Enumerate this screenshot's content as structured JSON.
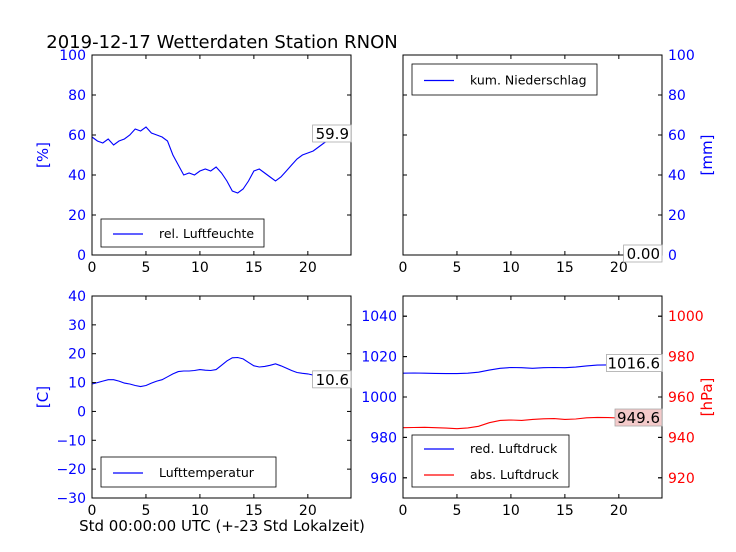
{
  "title": "2019-12-17 Wetterdaten Station RNON",
  "footer": "Std 00:00:00 UTC (+-23 Std Lokalzeit)",
  "chart_data": [
    {
      "id": "humidity",
      "type": "line",
      "ylabel": "[%]",
      "ylabel_color": "#0000ff",
      "tick_color": "#0000ff",
      "xlim": [
        0,
        24
      ],
      "ylim": [
        0,
        100
      ],
      "xticks": [
        0,
        5,
        10,
        15,
        20
      ],
      "yticks": [
        0,
        20,
        40,
        60,
        80,
        100
      ],
      "ytick_side": "left",
      "legend": {
        "position": "lower-left",
        "entries": [
          {
            "name": "rel. Luftfeuchte",
            "color": "#0000ff"
          }
        ]
      },
      "last_value_label": "59.9",
      "series": [
        {
          "name": "rel. Luftfeuchte",
          "color": "#0000ff",
          "x": [
            0,
            0.5,
            1,
            1.5,
            2,
            2.5,
            3,
            3.5,
            4,
            4.5,
            5,
            5.5,
            6,
            6.5,
            7,
            7.5,
            8,
            8.5,
            9,
            9.5,
            10,
            10.5,
            11,
            11.5,
            12,
            12.5,
            13,
            13.5,
            14,
            14.5,
            15,
            15.5,
            16,
            16.5,
            17,
            17.5,
            18,
            18.5,
            19,
            19.5,
            20,
            20.5,
            21,
            21.5,
            22,
            22.5,
            23,
            23.5,
            24
          ],
          "y": [
            59,
            57,
            56,
            58,
            55,
            57,
            58,
            60,
            63,
            62,
            64,
            61,
            60,
            59,
            57,
            50,
            45,
            40,
            41,
            40,
            42,
            43,
            42,
            44,
            41,
            37,
            32,
            31,
            33,
            37,
            42,
            43,
            41,
            39,
            37,
            39,
            42,
            45,
            48,
            50,
            51,
            52,
            54,
            56,
            58,
            60,
            61,
            60,
            60
          ]
        }
      ]
    },
    {
      "id": "precipitation",
      "type": "line",
      "ylabel": "[mm]",
      "ylabel_color": "#0000ff",
      "tick_color": "#0000ff",
      "xlim": [
        0,
        24
      ],
      "ylim": [
        0,
        100
      ],
      "xticks": [
        0,
        5,
        10,
        15,
        20
      ],
      "yticks": [
        0,
        20,
        40,
        60,
        80,
        100
      ],
      "ytick_side": "right",
      "legend": {
        "position": "upper-left",
        "entries": [
          {
            "name": "kum. Niederschlag",
            "color": "#0000ff"
          }
        ]
      },
      "last_value_label": "0.00",
      "series": [
        {
          "name": "kum. Niederschlag",
          "color": "#0000ff",
          "x": [
            0,
            24
          ],
          "y": [
            0,
            0
          ]
        }
      ]
    },
    {
      "id": "temperature",
      "type": "line",
      "ylabel": "[C]",
      "ylabel_color": "#0000ff",
      "tick_color": "#0000ff",
      "xlim": [
        0,
        24
      ],
      "ylim": [
        -30,
        40
      ],
      "xticks": [
        0,
        5,
        10,
        15,
        20
      ],
      "yticks": [
        -30,
        -20,
        -10,
        0,
        10,
        20,
        30,
        40
      ],
      "ytick_side": "left",
      "legend": {
        "position": "lower-left",
        "entries": [
          {
            "name": "Lufttemperatur",
            "color": "#0000ff"
          }
        ]
      },
      "last_value_label": "10.6",
      "series": [
        {
          "name": "Lufttemperatur",
          "color": "#0000ff",
          "x": [
            0,
            0.5,
            1,
            1.5,
            2,
            2.5,
            3,
            3.5,
            4,
            4.5,
            5,
            5.5,
            6,
            6.5,
            7,
            7.5,
            8,
            8.5,
            9,
            9.5,
            10,
            10.5,
            11,
            11.5,
            12,
            12.5,
            13,
            13.5,
            14,
            14.5,
            15,
            15.5,
            16,
            16.5,
            17,
            17.5,
            18,
            18.5,
            19,
            19.5,
            20,
            20.5,
            21,
            21.5,
            22,
            22.5,
            23,
            23.5,
            24
          ],
          "y": [
            9.5,
            10,
            10.5,
            11,
            11,
            10.5,
            9.8,
            9.5,
            9,
            8.6,
            9,
            9.8,
            10.5,
            11,
            12,
            13,
            13.8,
            14,
            14,
            14.2,
            14.5,
            14.3,
            14.2,
            14.5,
            16,
            17.5,
            18.6,
            18.7,
            18.2,
            17,
            15.8,
            15.4,
            15.6,
            16,
            16.5,
            15.8,
            15,
            14.2,
            13.5,
            13.2,
            13,
            12.6,
            12.2,
            11.8,
            11.5,
            11,
            10.8,
            10.6,
            10.6
          ]
        }
      ]
    },
    {
      "id": "pressure",
      "type": "line",
      "ylabel": "[hPa]",
      "ylabel_color": "#ff0000",
      "tick_color": "#0000ff",
      "xlim": [
        0,
        24
      ],
      "ylim": [
        950,
        1050
      ],
      "ylim_right": [
        910,
        1010
      ],
      "xticks": [
        0,
        5,
        10,
        15,
        20
      ],
      "yticks": [
        960,
        980,
        1000,
        1020,
        1040
      ],
      "yticks_right": [
        920,
        940,
        960,
        980,
        1000
      ],
      "right_tick_color": "#ff0000",
      "legend": {
        "position": "lower-left",
        "entries": [
          {
            "name": "red. Luftdruck",
            "color": "#0000ff"
          },
          {
            "name": "abs. Luftdruck",
            "color": "#ff0000"
          }
        ]
      },
      "series": [
        {
          "name": "red. Luftdruck",
          "color": "#0000ff",
          "axis": "left",
          "last_value_label": "1016.6",
          "x": [
            0,
            1,
            2,
            3,
            4,
            5,
            6,
            7,
            8,
            9,
            10,
            11,
            12,
            13,
            14,
            15,
            16,
            17,
            18,
            19,
            20,
            21,
            22,
            23,
            24
          ],
          "y": [
            1011.8,
            1011.9,
            1011.8,
            1011.7,
            1011.6,
            1011.6,
            1011.8,
            1012.3,
            1013.3,
            1014.2,
            1014.6,
            1014.5,
            1014.2,
            1014.5,
            1014.6,
            1014.5,
            1014.8,
            1015.4,
            1015.8,
            1015.9,
            1016.0,
            1016.2,
            1016.4,
            1016.5,
            1016.6
          ]
        },
        {
          "name": "abs. Luftdruck",
          "color": "#ff0000",
          "axis": "right",
          "last_value_label": "949.6",
          "x": [
            0,
            1,
            2,
            3,
            4,
            5,
            6,
            7,
            8,
            9,
            10,
            11,
            12,
            13,
            14,
            15,
            16,
            17,
            18,
            19,
            20,
            21,
            22,
            23,
            24
          ],
          "y": [
            944.8,
            944.9,
            945.0,
            944.8,
            944.6,
            944.3,
            944.7,
            945.5,
            947.3,
            948.4,
            948.6,
            948.4,
            948.9,
            949.2,
            949.3,
            948.9,
            949.1,
            949.7,
            949.9,
            949.8,
            949.6,
            949.5,
            949.6,
            949.5,
            949.6
          ]
        }
      ]
    }
  ]
}
